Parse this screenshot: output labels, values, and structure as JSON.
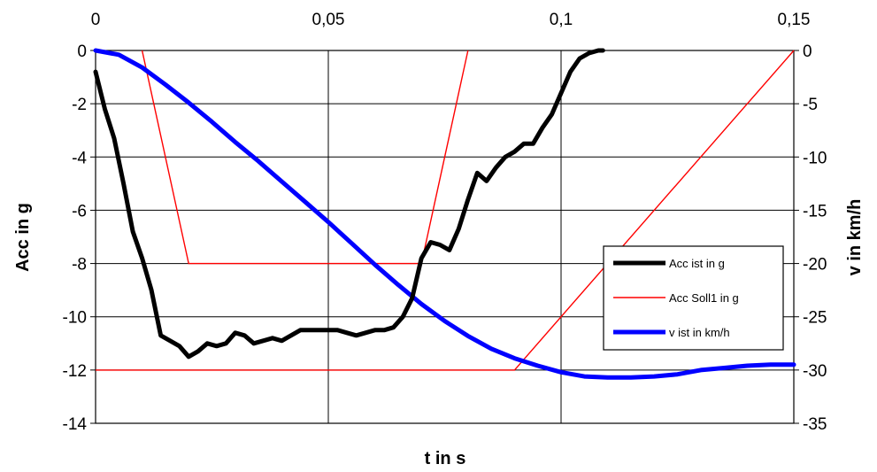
{
  "chart_data": {
    "type": "line",
    "xlabel": "t in s",
    "ylabel": "Acc in g",
    "y2label": "v in km/h",
    "xlim": [
      0,
      0.15
    ],
    "ylim": [
      -14,
      0
    ],
    "y2lim": [
      -35,
      0
    ],
    "x_ticks": [
      "0",
      "0,05",
      "0,1",
      "0,15"
    ],
    "x_tick_values": [
      0,
      0.05,
      0.1,
      0.15
    ],
    "y_ticks": [
      "0",
      "-2",
      "-4",
      "-6",
      "-8",
      "-10",
      "-12",
      "-14"
    ],
    "y_tick_values": [
      0,
      -2,
      -4,
      -6,
      -8,
      -10,
      -12,
      -14
    ],
    "y2_ticks": [
      "0",
      "-5",
      "-10",
      "-15",
      "-20",
      "-25",
      "-30",
      "-35"
    ],
    "y2_tick_values": [
      0,
      -5,
      -10,
      -15,
      -20,
      -25,
      -30,
      -35
    ],
    "grid": true,
    "legend_position": "right",
    "series": [
      {
        "name": "Acc ist in g",
        "axis": "left",
        "color": "#000000",
        "x": [
          0,
          0.002,
          0.004,
          0.006,
          0.008,
          0.01,
          0.012,
          0.014,
          0.016,
          0.018,
          0.02,
          0.022,
          0.024,
          0.026,
          0.028,
          0.03,
          0.032,
          0.034,
          0.036,
          0.038,
          0.04,
          0.042,
          0.044,
          0.046,
          0.048,
          0.05,
          0.052,
          0.054,
          0.056,
          0.058,
          0.06,
          0.062,
          0.064,
          0.066,
          0.068,
          0.07,
          0.072,
          0.074,
          0.076,
          0.078,
          0.08,
          0.082,
          0.084,
          0.086,
          0.088,
          0.09,
          0.092,
          0.094,
          0.096,
          0.098,
          0.1,
          0.102,
          0.104,
          0.106,
          0.108,
          0.109
        ],
        "values": [
          -0.8,
          -2.2,
          -3.3,
          -5.0,
          -6.8,
          -7.8,
          -9.0,
          -10.7,
          -10.9,
          -11.1,
          -11.5,
          -11.3,
          -11.0,
          -11.1,
          -11.0,
          -10.6,
          -10.7,
          -11.0,
          -10.9,
          -10.8,
          -10.9,
          -10.7,
          -10.5,
          -10.5,
          -10.5,
          -10.5,
          -10.5,
          -10.6,
          -10.7,
          -10.6,
          -10.5,
          -10.5,
          -10.4,
          -10.0,
          -9.3,
          -7.8,
          -7.2,
          -7.3,
          -7.5,
          -6.7,
          -5.6,
          -4.6,
          -4.9,
          -4.4,
          -4.0,
          -3.8,
          -3.5,
          -3.5,
          -2.9,
          -2.4,
          -1.6,
          -0.8,
          -0.3,
          -0.1,
          0,
          0
        ]
      },
      {
        "name": "Acc Soll1 in g",
        "axis": "left",
        "color": "#ff0000",
        "segments": [
          {
            "x": [
              0.01,
              0.02,
              0.07,
              0.08
            ],
            "values": [
              0,
              -8,
              -8,
              0
            ]
          },
          {
            "x": [
              0,
              0.09,
              0.15
            ],
            "values": [
              -12,
              -12,
              0
            ]
          }
        ]
      },
      {
        "name": "v ist in km/h",
        "axis": "right",
        "color": "#0000ff",
        "x": [
          0,
          0.005,
          0.01,
          0.015,
          0.02,
          0.025,
          0.03,
          0.035,
          0.04,
          0.045,
          0.05,
          0.055,
          0.06,
          0.065,
          0.07,
          0.075,
          0.08,
          0.085,
          0.09,
          0.095,
          0.1,
          0.105,
          0.11,
          0.115,
          0.12,
          0.125,
          0.13,
          0.135,
          0.14,
          0.145,
          0.15
        ],
        "values": [
          0,
          -0.4,
          -1.6,
          -3.2,
          -4.9,
          -6.7,
          -8.6,
          -10.4,
          -12.3,
          -14.2,
          -16.1,
          -18.1,
          -20.1,
          -22.0,
          -23.8,
          -25.4,
          -26.8,
          -28.0,
          -28.9,
          -29.6,
          -30.2,
          -30.6,
          -30.7,
          -30.7,
          -30.6,
          -30.4,
          -30.0,
          -29.8,
          -29.6,
          -29.5,
          -29.5
        ]
      }
    ]
  }
}
